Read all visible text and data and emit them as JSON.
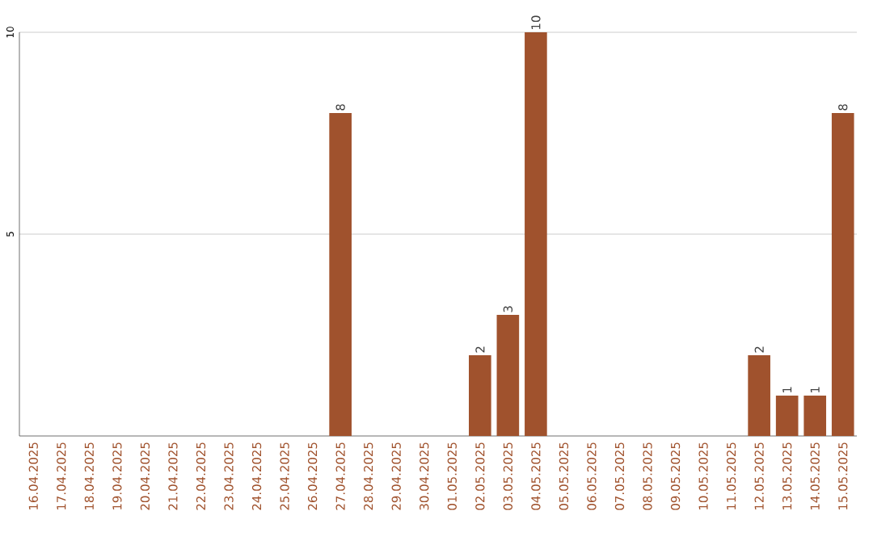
{
  "chart_data": {
    "type": "bar",
    "categories": [
      "16.04.2025",
      "17.04.2025",
      "18.04.2025",
      "19.04.2025",
      "20.04.2025",
      "21.04.2025",
      "22.04.2025",
      "23.04.2025",
      "24.04.2025",
      "25.04.2025",
      "26.04.2025",
      "27.04.2025",
      "28.04.2025",
      "29.04.2025",
      "30.04.2025",
      "01.05.2025",
      "02.05.2025",
      "03.05.2025",
      "04.05.2025",
      "05.05.2025",
      "06.05.2025",
      "07.05.2025",
      "08.05.2025",
      "09.05.2025",
      "10.05.2025",
      "11.05.2025",
      "12.05.2025",
      "13.05.2025",
      "14.05.2025",
      "15.05.2025"
    ],
    "values": [
      0,
      0,
      0,
      0,
      0,
      0,
      0,
      0,
      0,
      0,
      0,
      8,
      0,
      0,
      0,
      0,
      2,
      3,
      10,
      0,
      0,
      0,
      0,
      0,
      0,
      0,
      2,
      1,
      1,
      8
    ],
    "value_labels": [
      null,
      null,
      null,
      null,
      null,
      null,
      null,
      null,
      null,
      null,
      null,
      "8",
      null,
      null,
      null,
      null,
      "2",
      "3",
      "10",
      null,
      null,
      null,
      null,
      null,
      null,
      null,
      "2",
      "1",
      "1",
      "8"
    ],
    "color": "#a0522d",
    "ylim": [
      0,
      10
    ],
    "yticks": [
      5,
      10
    ],
    "grid": "y"
  }
}
